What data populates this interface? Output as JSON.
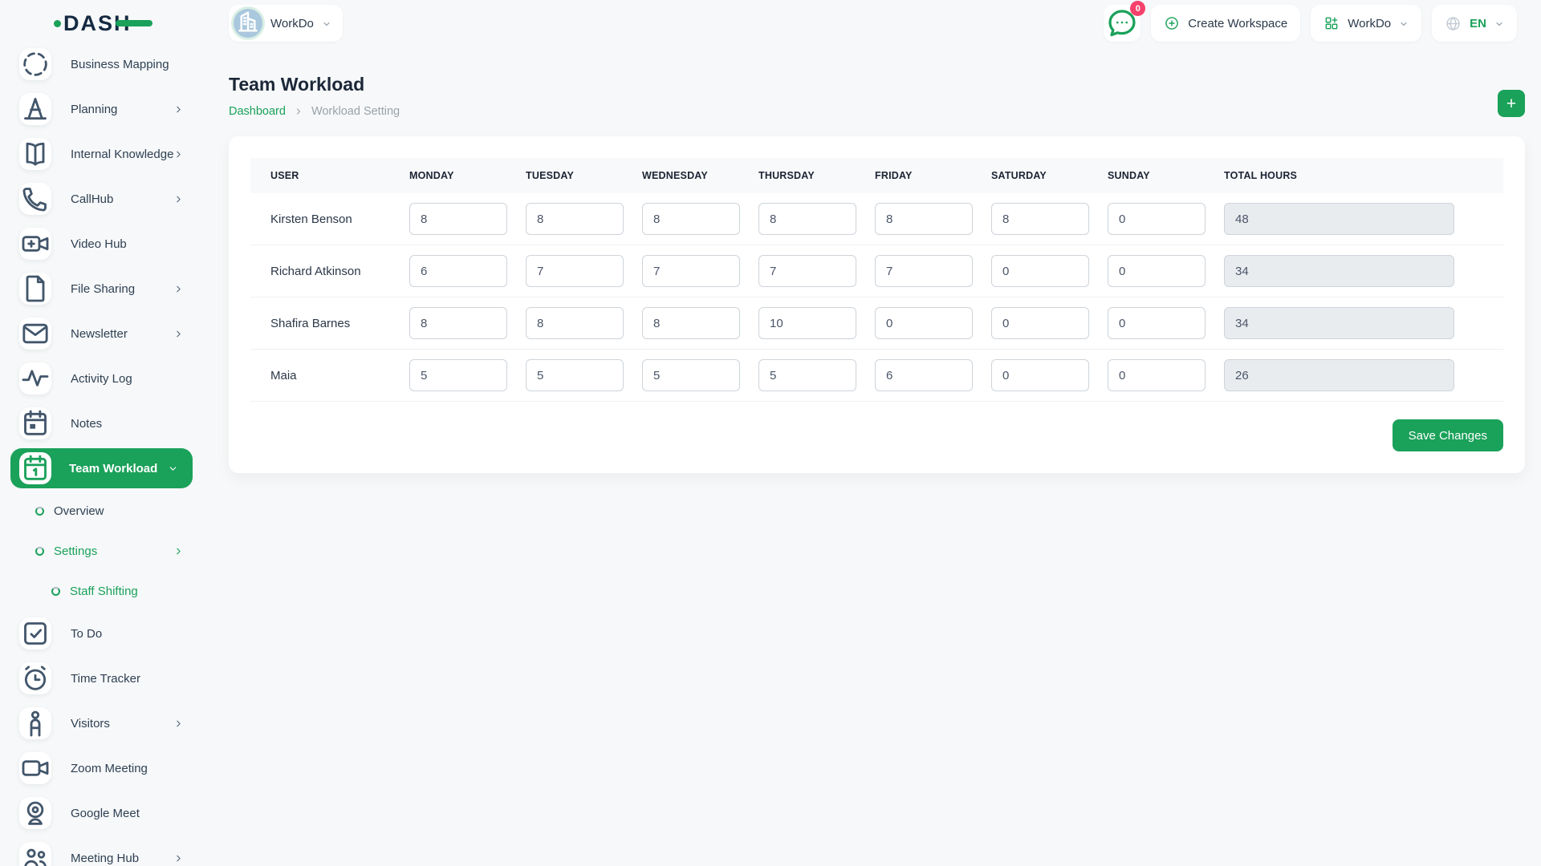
{
  "header": {
    "logo_text": "DASH",
    "workspace_switcher": {
      "label": "WorkDo"
    },
    "notifications": {
      "badge_count": "0"
    },
    "create_workspace": {
      "label": "Create Workspace"
    },
    "workspace_menu": {
      "label": "WorkDo"
    },
    "language_menu": {
      "label": "EN"
    }
  },
  "sidebar": {
    "items": [
      {
        "label": "Business Mapping",
        "icon": "business-mapping",
        "chevron": "none",
        "state": "normal",
        "level": 0
      },
      {
        "label": "Planning",
        "icon": "planning",
        "chevron": "right",
        "state": "normal",
        "level": 0
      },
      {
        "label": "Internal Knowledge",
        "icon": "book",
        "chevron": "right",
        "state": "normal",
        "level": 0
      },
      {
        "label": "CallHub",
        "icon": "phone",
        "chevron": "right",
        "state": "normal",
        "level": 0
      },
      {
        "label": "Video Hub",
        "icon": "video-plus",
        "chevron": "none",
        "state": "normal",
        "level": 0
      },
      {
        "label": "File Sharing",
        "icon": "file",
        "chevron": "right",
        "state": "normal",
        "level": 0
      },
      {
        "label": "Newsletter",
        "icon": "mail",
        "chevron": "right",
        "state": "normal",
        "level": 0
      },
      {
        "label": "Activity Log",
        "icon": "activity",
        "chevron": "none",
        "state": "normal",
        "level": 0
      },
      {
        "label": "Notes",
        "icon": "notes",
        "chevron": "none",
        "state": "normal",
        "level": 0
      },
      {
        "label": "Team Workload",
        "icon": "calendar",
        "chevron": "down",
        "state": "active",
        "level": 0
      },
      {
        "label": "Overview",
        "icon": "",
        "chevron": "none",
        "state": "normal",
        "level": 1
      },
      {
        "label": "Settings",
        "icon": "",
        "chevron": "right",
        "state": "highlight",
        "level": 1
      },
      {
        "label": "Staff Shifting",
        "icon": "",
        "chevron": "none",
        "state": "highlight",
        "level": 2
      },
      {
        "label": "To Do",
        "icon": "todo",
        "chevron": "none",
        "state": "normal",
        "level": 0
      },
      {
        "label": "Time Tracker",
        "icon": "alarm",
        "chevron": "none",
        "state": "normal",
        "level": 0
      },
      {
        "label": "Visitors",
        "icon": "person",
        "chevron": "right",
        "state": "normal",
        "level": 0
      },
      {
        "label": "Zoom Meeting",
        "icon": "video",
        "chevron": "none",
        "state": "normal",
        "level": 0
      },
      {
        "label": "Google Meet",
        "icon": "webcam",
        "chevron": "none",
        "state": "normal",
        "level": 0
      },
      {
        "label": "Meeting Hub",
        "icon": "people",
        "chevron": "right",
        "state": "normal",
        "level": 0
      }
    ]
  },
  "page": {
    "title": "Team Workload",
    "breadcrumb": [
      "Dashboard",
      "Workload Setting"
    ],
    "add_button_label": "+"
  },
  "table": {
    "columns": [
      "USER",
      "MONDAY",
      "TUESDAY",
      "WEDNESDAY",
      "THURSDAY",
      "FRIDAY",
      "SATURDAY",
      "SUNDAY",
      "TOTAL HOURS"
    ],
    "rows": [
      {
        "user": "Kirsten Benson",
        "hours": [
          "8",
          "8",
          "8",
          "8",
          "8",
          "8",
          "0"
        ],
        "total": "48"
      },
      {
        "user": "Richard Atkinson",
        "hours": [
          "6",
          "7",
          "7",
          "7",
          "7",
          "0",
          "0"
        ],
        "total": "34"
      },
      {
        "user": "Shafira Barnes",
        "hours": [
          "8",
          "8",
          "8",
          "10",
          "0",
          "0",
          "0"
        ],
        "total": "34"
      },
      {
        "user": "Maia",
        "hours": [
          "5",
          "5",
          "5",
          "5",
          "6",
          "0",
          "0"
        ],
        "total": "26"
      }
    ],
    "save_button_label": "Save Changes"
  },
  "colors": {
    "accent_green": "#1aa15a",
    "badge_pink": "#f5416c",
    "avatar_blue": "#a9c7dd",
    "page_background": "#f6f8f9",
    "total_field_background": "#e9ecef"
  }
}
